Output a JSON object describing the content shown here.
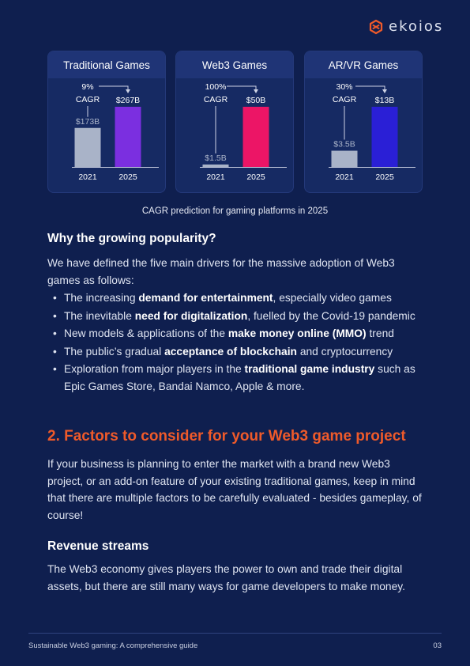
{
  "brand": {
    "name": "ekoios",
    "accent": "#ef5a2a"
  },
  "charts": [
    {
      "title": "Traditional Games",
      "growth": "9%",
      "growth_label": "CAGR",
      "years": [
        "2021",
        "2025"
      ],
      "labels": [
        "$173B",
        "$267B"
      ],
      "values": [
        173,
        267
      ],
      "colors": [
        "#a9b3c8",
        "#7b2fe0"
      ]
    },
    {
      "title": "Web3 Games",
      "growth": "100%",
      "growth_label": "CAGR",
      "years": [
        "2021",
        "2025"
      ],
      "labels": [
        "$1.5B",
        "$50B"
      ],
      "values": [
        1.5,
        50
      ],
      "colors": [
        "#a9b3c8",
        "#ec1566"
      ]
    },
    {
      "title": "AR/VR Games",
      "growth": "30%",
      "growth_label": "CAGR",
      "years": [
        "2021",
        "2025"
      ],
      "labels": [
        "$3.5B",
        "$13B"
      ],
      "values": [
        3.5,
        13
      ],
      "colors": [
        "#a9b3c8",
        "#2a1fd6"
      ]
    }
  ],
  "caption": "CAGR prediction for gaming platforms in 2025",
  "section_why": {
    "heading": "Why the growing popularity?",
    "intro": "We have defined the five main drivers for the massive adoption of Web3 games as follows:",
    "bullets": [
      {
        "pre": "The increasing ",
        "bold": "demand for entertainment",
        "post": ", especially video games"
      },
      {
        "pre": "The inevitable ",
        "bold": "need for digitalization",
        "post": ", fuelled by the Covid-19 pandemic"
      },
      {
        "pre": "New models & applications of the ",
        "bold": "make money online (MMO)",
        "post": " trend"
      },
      {
        "pre": "The public’s gradual ",
        "bold": "acceptance of blockchain",
        "post": " and cryptocurrency"
      },
      {
        "pre": "Exploration from major players in the ",
        "bold": "traditional game industry",
        "post": " such as Epic Games Store, Bandai Namco, Apple & more."
      }
    ]
  },
  "section_factors": {
    "heading": "2. Factors to consider for your Web3 game project",
    "body": "If your business is planning to enter the market with a brand new Web3 project, or an add-on feature of your existing traditional games, keep in mind that there are multiple factors to be carefully evaluated - besides gameplay, of course!"
  },
  "section_revenue": {
    "heading": "Revenue streams",
    "body": "The Web3 economy gives players the power to own and trade their digital assets, but there are still many ways for game developers to make money."
  },
  "footer": {
    "title": "Sustainable Web3 gaming: A comprehensive guide",
    "page": "03"
  },
  "chart_data": [
    {
      "type": "bar",
      "title": "Traditional Games",
      "categories": [
        "2021",
        "2025"
      ],
      "values": [
        173,
        267
      ],
      "unit": "$B",
      "annotation": "9% CAGR"
    },
    {
      "type": "bar",
      "title": "Web3 Games",
      "categories": [
        "2021",
        "2025"
      ],
      "values": [
        1.5,
        50
      ],
      "unit": "$B",
      "annotation": "100% CAGR"
    },
    {
      "type": "bar",
      "title": "AR/VR Games",
      "categories": [
        "2021",
        "2025"
      ],
      "values": [
        3.5,
        13
      ],
      "unit": "$B",
      "annotation": "30% CAGR"
    }
  ]
}
